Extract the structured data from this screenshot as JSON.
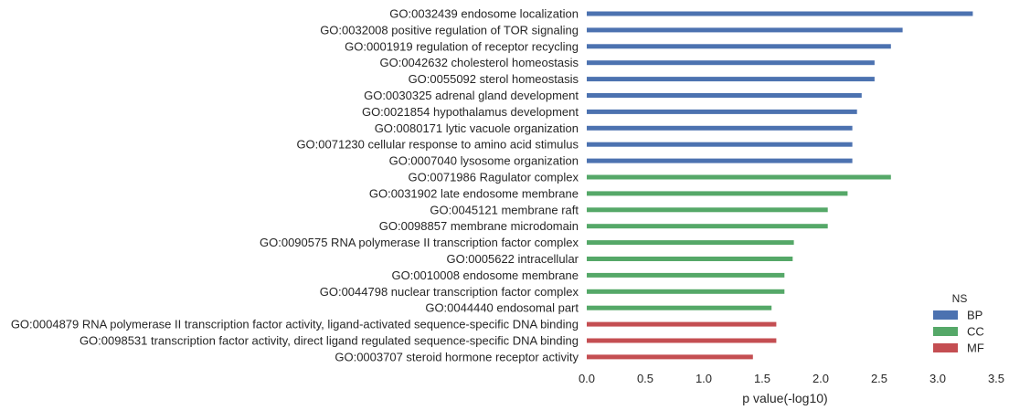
{
  "chart_data": {
    "type": "bar",
    "orientation": "horizontal",
    "title": "",
    "xlabel": "p value(-log10)",
    "ylabel": "",
    "xlim": [
      0,
      3.5
    ],
    "xticks": [
      "0.0",
      "0.5",
      "1.0",
      "1.5",
      "2.0",
      "2.5",
      "3.0",
      "3.5"
    ],
    "grid": false,
    "legend": {
      "title": "NS",
      "position": "bottom-right",
      "entries": [
        {
          "name": "BP",
          "color": "#4c72b0"
        },
        {
          "name": "CC",
          "color": "#55a868"
        },
        {
          "name": "MF",
          "color": "#c44e52"
        }
      ]
    },
    "bars": [
      {
        "label": "GO:0032439 endosome localization",
        "value": 3.3,
        "group": "BP"
      },
      {
        "label": "GO:0032008 positive regulation of TOR signaling",
        "value": 2.7,
        "group": "BP"
      },
      {
        "label": "GO:0001919 regulation of receptor recycling",
        "value": 2.6,
        "group": "BP"
      },
      {
        "label": "GO:0042632 cholesterol homeostasis",
        "value": 2.46,
        "group": "BP"
      },
      {
        "label": "GO:0055092 sterol homeostasis",
        "value": 2.46,
        "group": "BP"
      },
      {
        "label": "GO:0030325 adrenal gland development",
        "value": 2.35,
        "group": "BP"
      },
      {
        "label": "GO:0021854 hypothalamus development",
        "value": 2.31,
        "group": "BP"
      },
      {
        "label": "GO:0080171 lytic vacuole organization",
        "value": 2.27,
        "group": "BP"
      },
      {
        "label": "GO:0071230 cellular response to amino acid stimulus",
        "value": 2.27,
        "group": "BP"
      },
      {
        "label": "GO:0007040 lysosome organization",
        "value": 2.27,
        "group": "BP"
      },
      {
        "label": "GO:0071986 Ragulator complex",
        "value": 2.6,
        "group": "CC"
      },
      {
        "label": "GO:0031902 late endosome membrane",
        "value": 2.23,
        "group": "CC"
      },
      {
        "label": "GO:0045121 membrane raft",
        "value": 2.06,
        "group": "CC"
      },
      {
        "label": "GO:0098857 membrane microdomain",
        "value": 2.06,
        "group": "CC"
      },
      {
        "label": "GO:0090575 RNA polymerase II transcription factor complex",
        "value": 1.77,
        "group": "CC"
      },
      {
        "label": "GO:0005622 intracellular",
        "value": 1.76,
        "group": "CC"
      },
      {
        "label": "GO:0010008 endosome membrane",
        "value": 1.69,
        "group": "CC"
      },
      {
        "label": "GO:0044798 nuclear transcription factor complex",
        "value": 1.69,
        "group": "CC"
      },
      {
        "label": "GO:0044440 endosomal part",
        "value": 1.58,
        "group": "CC"
      },
      {
        "label": "GO:0004879 RNA polymerase II transcription factor activity, ligand-activated sequence-specific DNA binding",
        "value": 1.62,
        "group": "MF"
      },
      {
        "label": "GO:0098531 transcription factor activity, direct ligand regulated sequence-specific DNA binding",
        "value": 1.62,
        "group": "MF"
      },
      {
        "label": "GO:0003707 steroid hormone receptor activity",
        "value": 1.42,
        "group": "MF"
      }
    ]
  }
}
